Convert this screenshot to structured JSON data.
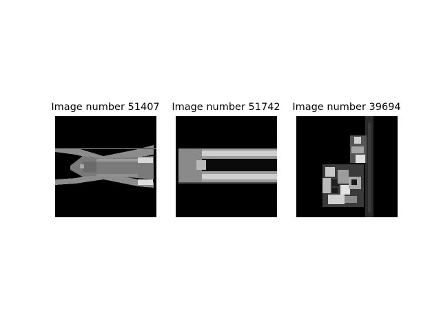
{
  "figure": {
    "panels": [
      {
        "title": "Image number 51407",
        "colormap": "gray",
        "background": "#000000"
      },
      {
        "title": "Image number 51742",
        "colormap": "gray",
        "background": "#000000"
      },
      {
        "title": "Image number 39694",
        "colormap": "gray",
        "background": "#000000"
      }
    ]
  }
}
